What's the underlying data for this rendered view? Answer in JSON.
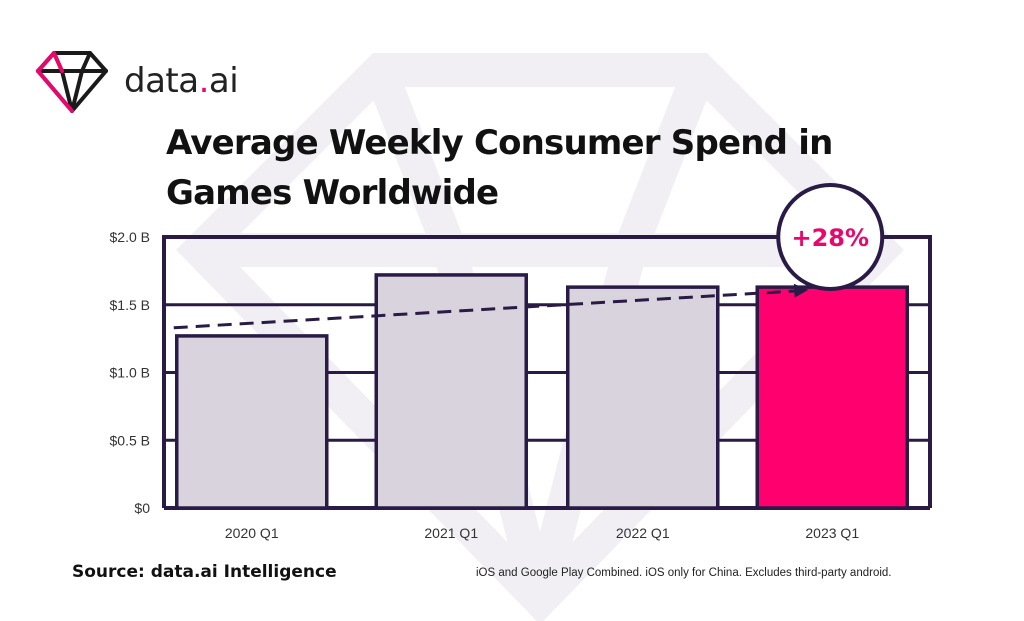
{
  "brand": {
    "name_prefix": "data",
    "name_dot": ".",
    "name_suffix": "ai",
    "accent_color": "#e8086d"
  },
  "title": "Average Weekly Consumer Spend in Games Worldwide",
  "source": "Source: data.ai Intelligence",
  "footnote": "iOS and Google Play Combined. iOS only for China. Excludes third-party android.",
  "icons": {
    "logo": "diamond-icon",
    "watermark": "diamond-watermark-icon",
    "trend": "dashed-arrow-icon"
  },
  "colors": {
    "bar_default": "#d9d3de",
    "bar_highlight": "#ff006e",
    "outline": "#2a1b46",
    "badge_text": "#e8086d"
  },
  "chart_data": {
    "type": "bar",
    "categories": [
      "2020 Q1",
      "2021 Q1",
      "2022 Q1",
      "2023 Q1"
    ],
    "values": [
      1.27,
      1.72,
      1.63,
      1.63
    ],
    "highlight_index": 3,
    "ylim": [
      0,
      2.0
    ],
    "yticks": [
      0,
      0.5,
      1.0,
      1.5,
      2.0
    ],
    "ytick_labels": [
      "$0",
      "$0.5 B",
      "$1.0 B",
      "$1.5 B",
      "$2.0 B"
    ],
    "grid": true,
    "trend_line": {
      "from": 1.33,
      "to": 1.61,
      "style": "dashed-arrow"
    },
    "annotation": {
      "text": "+28%",
      "target_category": "2023 Q1"
    },
    "title": "Average Weekly Consumer Spend in Games Worldwide",
    "xlabel": "",
    "ylabel": ""
  }
}
